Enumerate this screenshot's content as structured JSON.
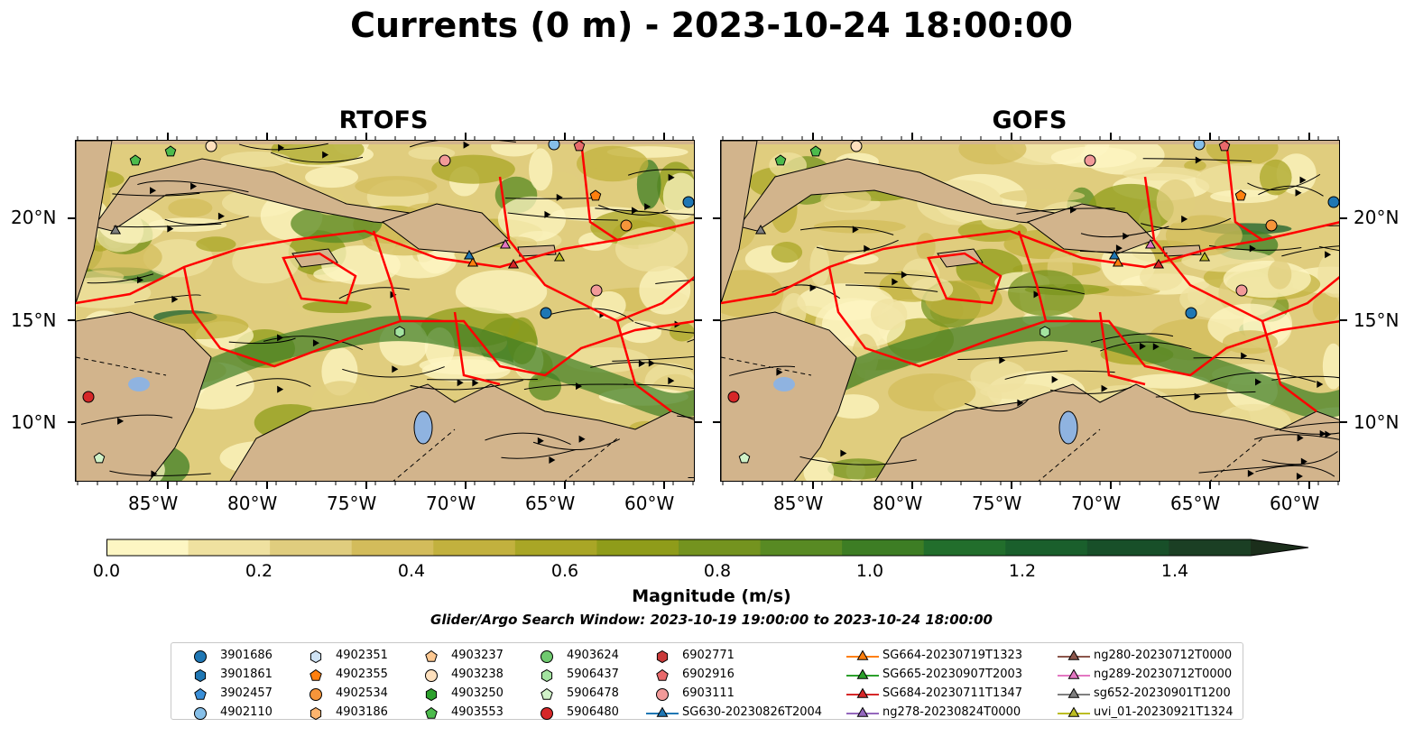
{
  "title": "Currents (0 m) - 2023-10-24 18:00:00",
  "panels": [
    {
      "title": "RTOFS"
    },
    {
      "title": "GOFS"
    }
  ],
  "axes": {
    "x_ticks": [
      "85°W",
      "80°W",
      "75°W",
      "70°W",
      "65°W",
      "60°W"
    ],
    "y_ticks": [
      "20°N",
      "15°N",
      "10°N"
    ]
  },
  "colorbar": {
    "label": "Magnitude (m/s)",
    "ticks": [
      "0.0",
      "0.2",
      "0.4",
      "0.6",
      "0.8",
      "1.0",
      "1.2",
      "1.4"
    ],
    "range": [
      0,
      1.5
    ],
    "extend": "max",
    "colors": [
      "#fdf6c3",
      "#efe1a0",
      "#e0cd7e",
      "#d3bc5b",
      "#c2b13e",
      "#a9a626",
      "#8f9c1a",
      "#74931f",
      "#588a23",
      "#3d7d24",
      "#226e2c",
      "#1a5f2c",
      "#184f29",
      "#1b3f24",
      "#1b2e1b"
    ]
  },
  "map_colors": {
    "land": "#d2b48c",
    "lake": "#8fb3e0",
    "track": "#ff0000"
  },
  "search_window": "Glider/Argo Search Window: 2023-10-19 19:00:00 to 2023-10-24 18:00:00",
  "legend": {
    "columns": [
      [
        {
          "label": "3901686",
          "marker": "circle",
          "color": "#1f77b4"
        },
        {
          "label": "3901861",
          "marker": "hexagon",
          "color": "#1f77b4"
        },
        {
          "label": "3902457",
          "marker": "pentagon",
          "color": "#3a8fd8"
        },
        {
          "label": "4902110",
          "marker": "circle",
          "color": "#86bfe8"
        }
      ],
      [
        {
          "label": "4902351",
          "marker": "hexagon",
          "color": "#cfe3f5"
        },
        {
          "label": "4902355",
          "marker": "pentagon",
          "color": "#ff7f0e"
        },
        {
          "label": "4902534",
          "marker": "circle",
          "color": "#f6953a"
        },
        {
          "label": "4903186",
          "marker": "hexagon",
          "color": "#fdb46e"
        }
      ],
      [
        {
          "label": "4903237",
          "marker": "pentagon",
          "color": "#fdc891"
        },
        {
          "label": "4903238",
          "marker": "circle",
          "color": "#fee0bd"
        },
        {
          "label": "4903250",
          "marker": "hexagon",
          "color": "#2ca02c"
        },
        {
          "label": "4903553",
          "marker": "pentagon",
          "color": "#4cbb4c"
        }
      ],
      [
        {
          "label": "4903624",
          "marker": "circle",
          "color": "#6fc96f"
        },
        {
          "label": "5906437",
          "marker": "hexagon",
          "color": "#a3e3a0"
        },
        {
          "label": "5906478",
          "marker": "pentagon",
          "color": "#d0f2c8"
        },
        {
          "label": "5906480",
          "marker": "circle",
          "color": "#d62728"
        }
      ],
      [
        {
          "label": "6902771",
          "marker": "hexagon",
          "color": "#c93a3a"
        },
        {
          "label": "6902916",
          "marker": "pentagon",
          "color": "#e8696b"
        },
        {
          "label": "6903111",
          "marker": "circle",
          "color": "#f29a99"
        },
        {
          "label": "SG630-20230826T2004",
          "marker": "triangle",
          "color": "#1f77b4"
        }
      ],
      [
        {
          "label": "SG664-20230719T1323",
          "marker": "triangle",
          "color": "#ff7f0e"
        },
        {
          "label": "SG665-20230907T2003",
          "marker": "triangle",
          "color": "#2ca02c"
        },
        {
          "label": "SG684-20230711T1347",
          "marker": "triangle",
          "color": "#d62728"
        },
        {
          "label": "ng278-20230824T0000",
          "marker": "triangle",
          "color": "#9467bd"
        }
      ],
      [
        {
          "label": "ng280-20230712T0000",
          "marker": "triangle",
          "color": "#8c564b"
        },
        {
          "label": "ng289-20230712T0000",
          "marker": "triangle",
          "color": "#e377c2"
        },
        {
          "label": "sg652-20230901T1200",
          "marker": "triangle",
          "color": "#7f7f7f"
        },
        {
          "label": "uvi_01-20230921T1324",
          "marker": "triangle",
          "color": "#bcbd22"
        }
      ]
    ]
  }
}
